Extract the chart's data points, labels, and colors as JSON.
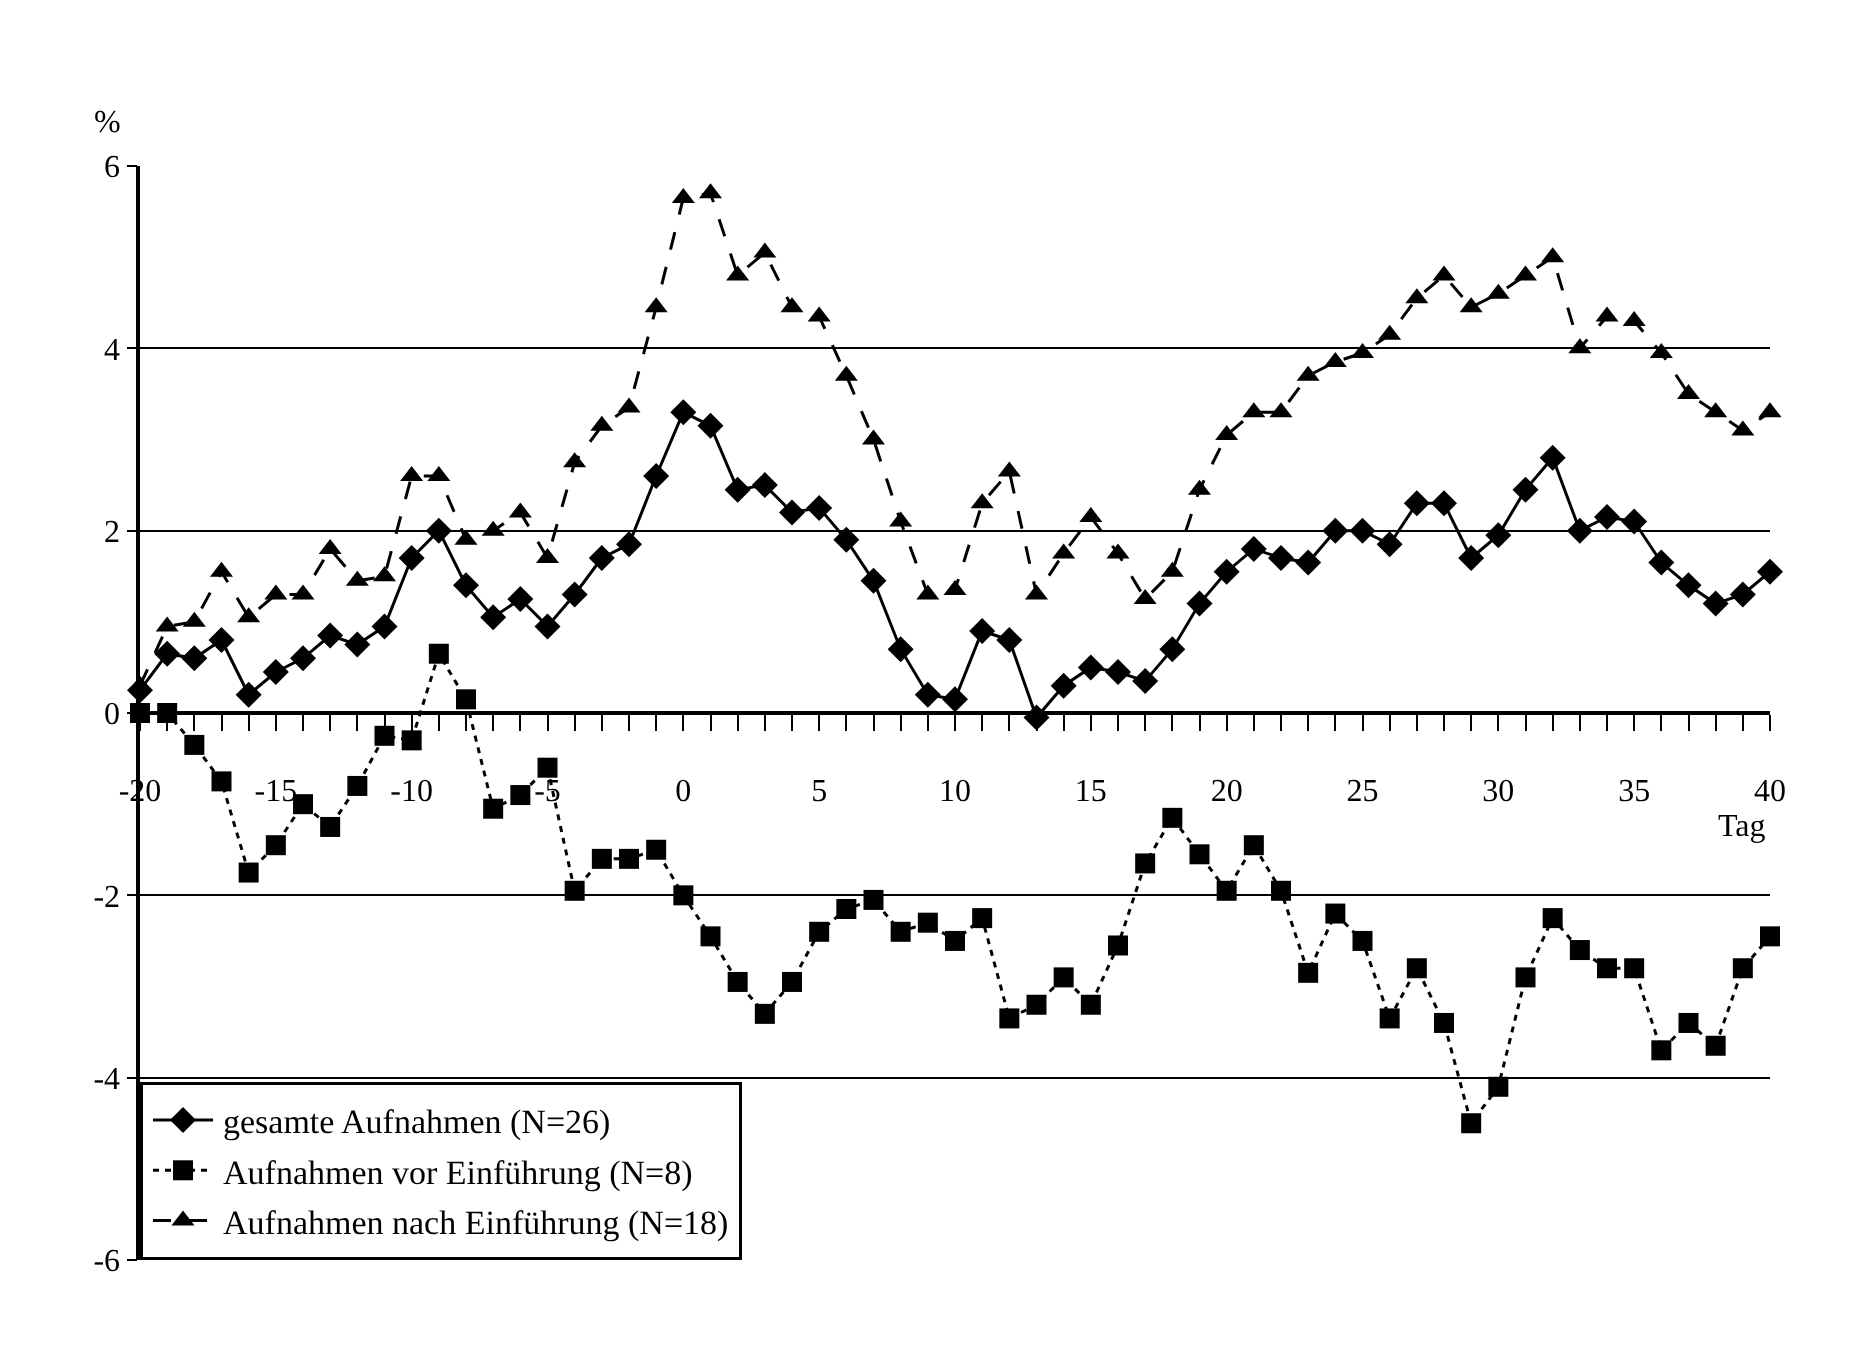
{
  "chart_data": {
    "type": "line",
    "xlabel": "Tag",
    "ylabel": "%",
    "x": [
      -20,
      -19,
      -18,
      -17,
      -16,
      -15,
      -14,
      -13,
      -12,
      -11,
      -10,
      -9,
      -8,
      -7,
      -6,
      -5,
      -4,
      -3,
      -2,
      -1,
      0,
      1,
      2,
      3,
      4,
      5,
      6,
      7,
      8,
      9,
      10,
      11,
      12,
      13,
      14,
      15,
      16,
      17,
      18,
      19,
      20,
      21,
      22,
      23,
      24,
      25,
      26,
      27,
      28,
      29,
      30,
      31,
      32,
      33,
      34,
      35,
      36,
      37,
      38,
      39,
      40
    ],
    "series": [
      {
        "name": "gesamte Aufnahmen (N=26)",
        "color": "#000000",
        "marker": "diamond",
        "line_style": "solid",
        "values": [
          0.25,
          0.65,
          0.6,
          0.8,
          0.2,
          0.45,
          0.6,
          0.85,
          0.75,
          0.95,
          1.7,
          2.0,
          1.4,
          1.05,
          1.25,
          0.95,
          1.3,
          1.7,
          1.85,
          2.6,
          3.3,
          3.15,
          2.45,
          2.5,
          2.2,
          2.25,
          1.9,
          1.45,
          0.7,
          0.2,
          0.15,
          0.9,
          0.8,
          -0.05,
          0.3,
          0.5,
          0.45,
          0.35,
          0.7,
          1.2,
          1.55,
          1.8,
          1.7,
          1.65,
          2.0,
          2.0,
          1.85,
          2.3,
          2.3,
          1.7,
          1.95,
          2.45,
          2.8,
          2.0,
          2.15,
          2.1,
          1.65,
          1.4,
          1.2,
          1.3,
          1.55
        ]
      },
      {
        "name": "Aufnahmen vor Einführung (N=8)",
        "color": "#000000",
        "marker": "square",
        "line_style": "dotted",
        "values": [
          0.0,
          0.0,
          -0.35,
          -0.75,
          -1.75,
          -1.45,
          -1.0,
          -1.25,
          -0.8,
          -0.25,
          -0.3,
          0.65,
          0.15,
          -1.05,
          -0.9,
          -0.6,
          -1.95,
          -1.6,
          -1.6,
          -1.5,
          -2.0,
          -2.45,
          -2.95,
          -3.3,
          -2.95,
          -2.4,
          -2.15,
          -2.05,
          -2.4,
          -2.3,
          -2.5,
          -2.25,
          -3.35,
          -3.2,
          -2.9,
          -3.2,
          -2.55,
          -1.65,
          -1.15,
          -1.55,
          -1.95,
          -1.45,
          -1.95,
          -2.85,
          -2.2,
          -2.5,
          -3.35,
          -2.8,
          -3.4,
          -4.5,
          -4.1,
          -2.9,
          -2.25,
          -2.6,
          -2.8,
          -2.8,
          -3.7,
          -3.4,
          -3.65,
          -2.8,
          -2.45
        ]
      },
      {
        "name": "Aufnahmen nach Einführung (N=18)",
        "color": "#000000",
        "marker": "triangle",
        "line_style": "dashed",
        "values": [
          0.3,
          0.95,
          1.0,
          1.55,
          1.05,
          1.3,
          1.3,
          1.8,
          1.45,
          1.5,
          2.6,
          2.6,
          1.9,
          2.0,
          2.2,
          1.7,
          2.75,
          3.15,
          3.35,
          4.45,
          5.65,
          5.7,
          4.8,
          5.05,
          4.45,
          4.35,
          3.7,
          3.0,
          2.1,
          1.3,
          1.35,
          2.3,
          2.65,
          1.3,
          1.75,
          2.15,
          1.75,
          1.25,
          1.55,
          2.45,
          3.05,
          3.3,
          3.3,
          3.7,
          3.85,
          3.95,
          4.15,
          4.55,
          4.8,
          4.45,
          4.6,
          4.8,
          5.0,
          4.0,
          4.35,
          4.3,
          3.95,
          3.5,
          3.3,
          3.1,
          3.3
        ]
      }
    ],
    "xlim": [
      -20,
      40
    ],
    "xticks": [
      -20,
      -15,
      -10,
      -5,
      0,
      5,
      10,
      15,
      20,
      25,
      30,
      35,
      40
    ],
    "ylim": [
      -6,
      6
    ],
    "yticks": [
      -6,
      -4,
      -2,
      0,
      2,
      4,
      6
    ],
    "grid": "y",
    "legend": "bottom left"
  }
}
